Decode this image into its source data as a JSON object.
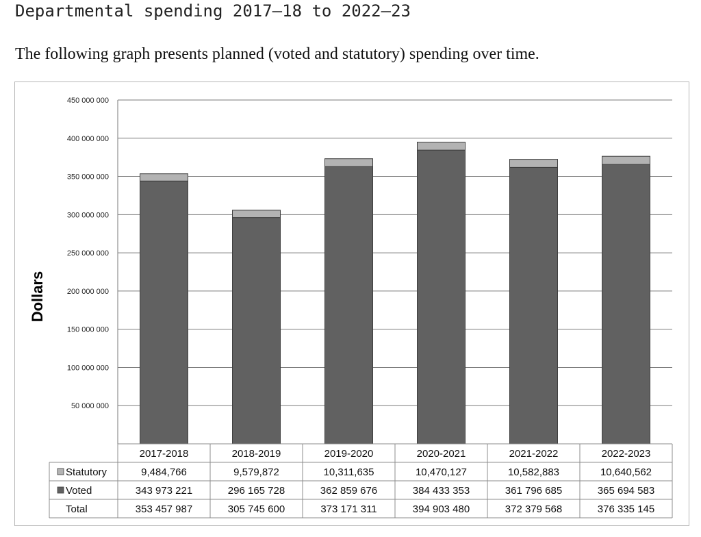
{
  "page": {
    "heading": "Departmental spending 2017–18 to 2022–23",
    "intro": "The following graph presents planned (voted and statutory) spending over time."
  },
  "chart_data": {
    "type": "bar",
    "stacked": true,
    "categories": [
      "2017-2018",
      "2018-2019",
      "2019-2020",
      "2020-2021",
      "2021-2022",
      "2022-2023"
    ],
    "series": [
      {
        "name": "Statutory",
        "values": [
          9484766,
          9579872,
          10311635,
          10470127,
          10582883,
          10640562
        ],
        "labels": [
          "9,484,766",
          "9,579,872",
          "10,311,635",
          "10,470,127",
          "10,582,883",
          "10,640,562"
        ],
        "color": "#b3b3b3"
      },
      {
        "name": "Voted",
        "values": [
          343973221,
          296165728,
          362859676,
          384433353,
          361796685,
          365694583
        ],
        "labels": [
          "343 973 221",
          "296 165 728",
          "362 859 676",
          "384 433 353",
          "361 796 685",
          "365 694 583"
        ],
        "color": "#616161"
      }
    ],
    "total": {
      "name": "Total",
      "labels": [
        "353 457 987",
        "305 745 600",
        "373 171 311",
        "394 903 480",
        "372 379 568",
        "376 335 145"
      ]
    },
    "ylabel": "Dollars",
    "ylim": [
      0,
      450000000
    ],
    "yticks": [
      50000000,
      100000000,
      150000000,
      200000000,
      250000000,
      300000000,
      350000000,
      400000000,
      450000000
    ],
    "ytick_labels": [
      "50 000 000",
      "100 000 000",
      "150 000 000",
      "200 000 000",
      "250 000 000",
      "300 000 000",
      "350 000 000",
      "400 000 000",
      "450 000 000"
    ],
    "grid": true,
    "legend": "data-table"
  }
}
